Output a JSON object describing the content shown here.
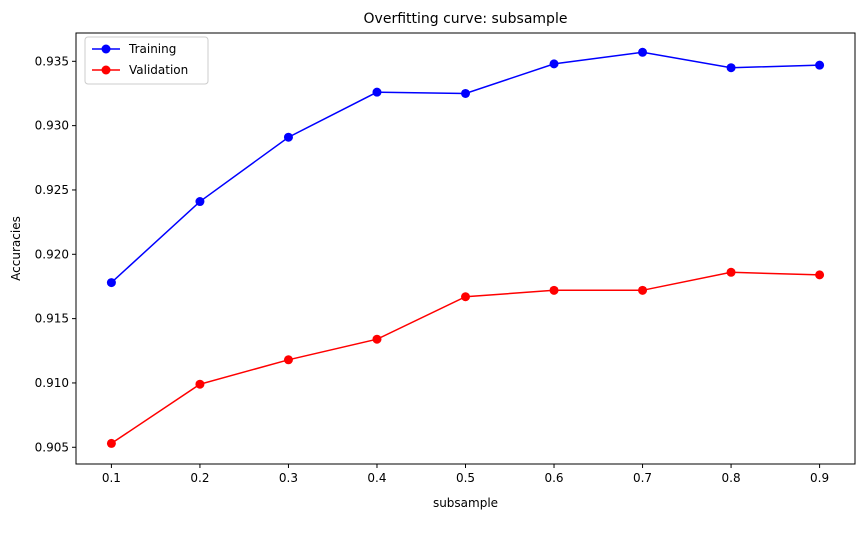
{
  "chart_data": {
    "type": "line",
    "title": "Overfitting curve: subsample",
    "xlabel": "subsample",
    "ylabel": "Accuracies",
    "x": [
      0.1,
      0.2,
      0.3,
      0.4,
      0.5,
      0.6,
      0.7,
      0.8,
      0.9
    ],
    "xticks": [
      "0.1",
      "0.2",
      "0.3",
      "0.4",
      "0.5",
      "0.6",
      "0.7",
      "0.8",
      "0.9"
    ],
    "yticks": [
      "0.905",
      "0.910",
      "0.915",
      "0.920",
      "0.925",
      "0.930",
      "0.935"
    ],
    "ytick_values": [
      0.905,
      0.91,
      0.915,
      0.92,
      0.925,
      0.93,
      0.935
    ],
    "xlim": [
      0.06,
      0.94
    ],
    "ylim": [
      0.9037,
      0.9372
    ],
    "grid": false,
    "legend_position": "top-left",
    "series": [
      {
        "name": "Training",
        "color": "#0000ff",
        "marker": "circle",
        "values": [
          0.9178,
          0.9241,
          0.9291,
          0.9326,
          0.9325,
          0.9348,
          0.9357,
          0.9345,
          0.9347
        ]
      },
      {
        "name": "Validation",
        "color": "#ff0000",
        "marker": "circle",
        "values": [
          0.9053,
          0.9099,
          0.9118,
          0.9134,
          0.9167,
          0.9172,
          0.9172,
          0.9186,
          0.9184
        ]
      }
    ]
  }
}
